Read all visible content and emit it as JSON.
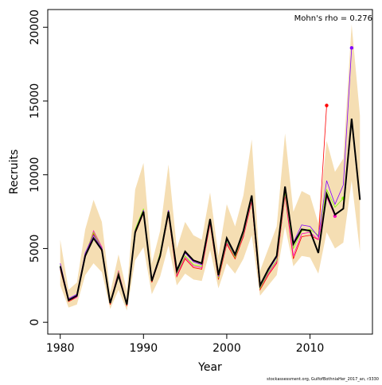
{
  "chart_data": {
    "type": "line",
    "xlabel": "Year",
    "ylabel": "Recruits",
    "annotation": "Mohn's rho = 0.276",
    "footer": "stockassessment.org, GulfofBothniaHer_2017_an, r3330",
    "x": [
      1980,
      1981,
      1982,
      1983,
      1984,
      1985,
      1986,
      1987,
      1988,
      1989,
      1990,
      1991,
      1992,
      1993,
      1994,
      1995,
      1996,
      1997,
      1998,
      1999,
      2000,
      2001,
      2002,
      2003,
      2004,
      2005,
      2006,
      2007,
      2008,
      2009,
      2010,
      2011,
      2012,
      2013,
      2014,
      2015,
      2016
    ],
    "xlim": [
      1978.5,
      2017.5
    ],
    "ylim": [
      -800,
      21200
    ],
    "xticks": [
      1980,
      1990,
      2000,
      2010
    ],
    "yticks": [
      0,
      5000,
      10000,
      15000,
      20000
    ],
    "band": {
      "color": "#f5deb3",
      "upper": [
        5600,
        2200,
        2700,
        6300,
        8300,
        6800,
        2000,
        4600,
        2100,
        9000,
        10800,
        4000,
        6200,
        10700,
        5000,
        6800,
        5900,
        5600,
        8800,
        4500,
        8000,
        6500,
        8600,
        12400,
        3500,
        5000,
        6500,
        12800,
        7500,
        8900,
        8600,
        6700,
        12300,
        10200,
        11100,
        20200,
        14000
      ],
      "lower": [
        2500,
        1000,
        1200,
        3200,
        4000,
        3400,
        900,
        2200,
        800,
        4200,
        5100,
        1900,
        3100,
        5200,
        2500,
        3300,
        2900,
        2800,
        4900,
        2300,
        4000,
        3300,
        4300,
        5900,
        1800,
        2500,
        3200,
        6500,
        3800,
        4500,
        4400,
        3300,
        6100,
        5000,
        5400,
        9600,
        4800
      ]
    },
    "series": [
      {
        "color": "#ff0000",
        "values": [
          3600,
          1400,
          1700,
          4400,
          6000,
          4800,
          1200,
          3400,
          1100,
          6000,
          7400,
          2700,
          4400,
          7300,
          3100,
          4300,
          3700,
          3600,
          6700,
          2900,
          5300,
          4300,
          5800,
          8200,
          2200,
          3200,
          4000,
          8600,
          4300,
          5800,
          5900,
          5600,
          14700,
          null,
          null,
          null,
          null
        ]
      },
      {
        "color": "#ff00bf",
        "values": [
          3700,
          1500,
          1700,
          4500,
          6200,
          5100,
          1300,
          3500,
          1200,
          6100,
          7600,
          2800,
          4600,
          7500,
          3200,
          4400,
          3800,
          3700,
          6800,
          3000,
          5400,
          4400,
          5900,
          8300,
          2300,
          3300,
          4100,
          8700,
          4500,
          6000,
          6100,
          5600,
          8500,
          7200,
          null,
          null,
          null
        ]
      },
      {
        "color": "#80ff00",
        "values": [
          3900,
          1500,
          1800,
          4600,
          6100,
          5000,
          1300,
          3400,
          1200,
          6300,
          7700,
          2800,
          4700,
          7600,
          3300,
          4500,
          3900,
          3800,
          6900,
          3000,
          5500,
          4400,
          6000,
          8400,
          2300,
          3400,
          4200,
          8800,
          5000,
          6200,
          6300,
          5900,
          9000,
          7800,
          8400,
          null,
          null
        ]
      },
      {
        "color": "#8000ff",
        "values": [
          4000,
          1600,
          1900,
          4700,
          5900,
          5000,
          1300,
          3300,
          1200,
          6200,
          7600,
          2900,
          4600,
          7600,
          3400,
          4700,
          4100,
          3900,
          7000,
          3100,
          5600,
          4500,
          6100,
          8500,
          2400,
          3500,
          4400,
          9000,
          5400,
          6600,
          6500,
          5800,
          9600,
          8000,
          9300,
          18600,
          null
        ]
      },
      {
        "color": "#000000",
        "values": [
          3800,
          1500,
          1800,
          4500,
          5700,
          4900,
          1300,
          3200,
          1200,
          6100,
          7500,
          2800,
          4500,
          7500,
          3500,
          4800,
          4200,
          4000,
          7000,
          3200,
          5700,
          4600,
          6200,
          8600,
          2500,
          3600,
          4500,
          9200,
          5300,
          6300,
          6200,
          4700,
          8700,
          7300,
          7700,
          13800,
          8300
        ]
      }
    ]
  }
}
